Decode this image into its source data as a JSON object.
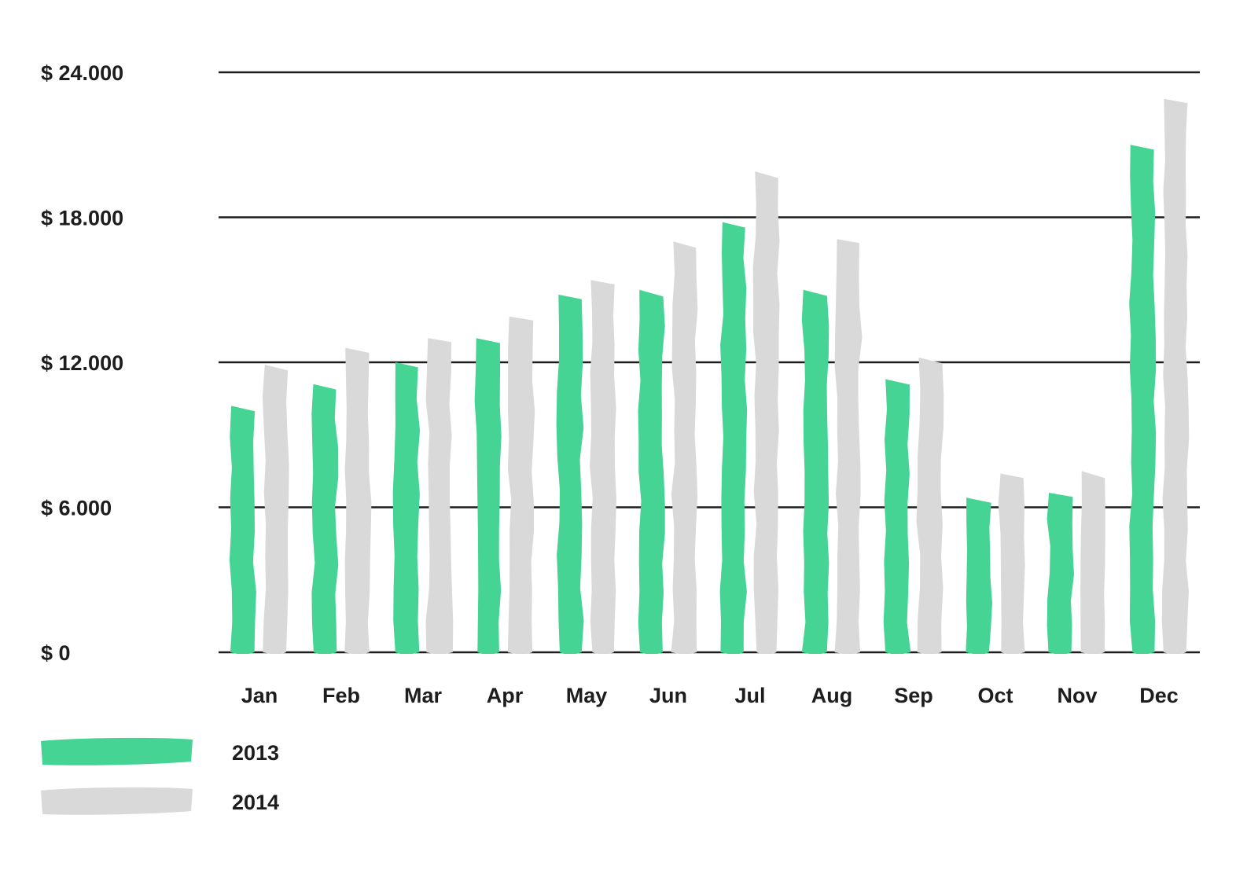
{
  "chart_data": {
    "type": "bar",
    "title": "",
    "xlabel": "",
    "ylabel": "",
    "ylim": [
      0,
      24000
    ],
    "y_ticks": [
      0,
      6000,
      12000,
      18000,
      24000
    ],
    "y_tick_labels": [
      "$ 0",
      "$ 6.000",
      "$ 12.000",
      "$ 18.000",
      "$ 24.000"
    ],
    "grid": true,
    "legend_position": "bottom-left",
    "categories": [
      "Jan",
      "Feb",
      "Mar",
      "Apr",
      "May",
      "Jun",
      "Jul",
      "Aug",
      "Sep",
      "Oct",
      "Nov",
      "Dec"
    ],
    "series": [
      {
        "name": "2013",
        "color": "#45d493",
        "values": [
          10200,
          11100,
          12000,
          13000,
          14800,
          15000,
          17800,
          15000,
          11300,
          6400,
          6600,
          21000
        ]
      },
      {
        "name": "2014",
        "color": "#d9d9d9",
        "values": [
          11900,
          12600,
          13000,
          13900,
          15400,
          17000,
          19900,
          17100,
          12200,
          7400,
          7500,
          22900
        ]
      }
    ]
  }
}
